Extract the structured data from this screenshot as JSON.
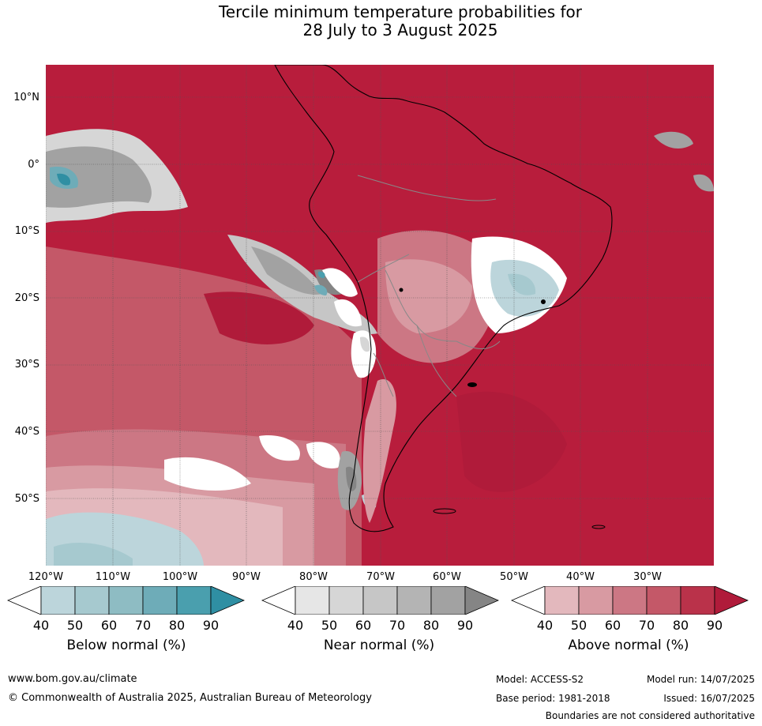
{
  "title_line1": "Tercile minimum temperature probabilities for",
  "title_line2": "28 July to 3 August 2025",
  "lat_labels": [
    "10°N",
    "0°",
    "10°S",
    "20°S",
    "30°S",
    "40°S",
    "50°S"
  ],
  "lon_labels": [
    "120°W",
    "110°W",
    "100°W",
    "90°W",
    "80°W",
    "70°W",
    "60°W",
    "50°W",
    "40°W",
    "30°W"
  ],
  "legends": [
    {
      "title": "Below normal (%)",
      "ticks": [
        "40",
        "50",
        "60",
        "70",
        "80",
        "90"
      ],
      "colors": [
        "#ffffff",
        "#bcd5db",
        "#a6c9cf",
        "#8ebcc3",
        "#6eacb8",
        "#4a9fae",
        "#2f8fa3"
      ]
    },
    {
      "title": "Near normal (%)",
      "ticks": [
        "40",
        "50",
        "60",
        "70",
        "80",
        "90"
      ],
      "colors": [
        "#ffffff",
        "#e6e6e6",
        "#d6d6d6",
        "#c6c6c6",
        "#b4b4b4",
        "#a2a2a2",
        "#858585"
      ]
    },
    {
      "title": "Above normal (%)",
      "ticks": [
        "40",
        "50",
        "60",
        "70",
        "80",
        "90"
      ],
      "colors": [
        "#ffffff",
        "#e3b8bd",
        "#d89aa2",
        "#cc7784",
        "#c45868",
        "#ba324a",
        "#b01b3a"
      ]
    }
  ],
  "footer": {
    "url": "www.bom.gov.au/climate",
    "copyright": "© Commonwealth of Australia 2025, Australian Bureau of Meteorology",
    "model": "Model: ACCESS-S2",
    "base_period": "Base period: 1981-2018",
    "model_run": "Model run: 14/07/2025",
    "issued": "Issued: 16/07/2025",
    "disclaimer": "Boundaries are not considered authoritative"
  }
}
